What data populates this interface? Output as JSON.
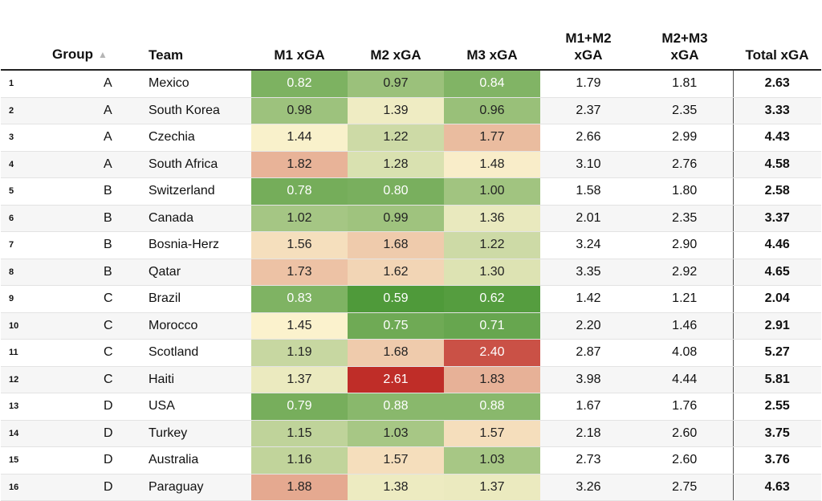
{
  "headers": {
    "group": "Group",
    "team": "Team",
    "m1": "M1 xGA",
    "m2": "M2 xGA",
    "m3": "M3 xGA",
    "m1m2_line1": "M1+M2",
    "m1m2_line2": "xGA",
    "m2m3_line1": "M2+M3",
    "m2m3_line2": "xGA",
    "total": "Total xGA"
  },
  "sort": {
    "column": "Group",
    "direction": "ascending",
    "icon": "triangle-up-icon"
  },
  "color_scale": {
    "low": "#4f9a3a",
    "mid": "#fbf2cd",
    "high": "#bf2d28",
    "domain": [
      0.59,
      1.45,
      2.61
    ]
  },
  "rows": [
    {
      "idx": "1",
      "group": "A",
      "team": "Mexico",
      "m1": "0.82",
      "m2": "0.97",
      "m3": "0.84",
      "m1m2": "1.79",
      "m2m3": "1.81",
      "total": "2.63"
    },
    {
      "idx": "2",
      "group": "A",
      "team": "South Korea",
      "m1": "0.98",
      "m2": "1.39",
      "m3": "0.96",
      "m1m2": "2.37",
      "m2m3": "2.35",
      "total": "3.33"
    },
    {
      "idx": "3",
      "group": "A",
      "team": "Czechia",
      "m1": "1.44",
      "m2": "1.22",
      "m3": "1.77",
      "m1m2": "2.66",
      "m2m3": "2.99",
      "total": "4.43"
    },
    {
      "idx": "4",
      "group": "A",
      "team": "South Africa",
      "m1": "1.82",
      "m2": "1.28",
      "m3": "1.48",
      "m1m2": "3.10",
      "m2m3": "2.76",
      "total": "4.58"
    },
    {
      "idx": "5",
      "group": "B",
      "team": "Switzerland",
      "m1": "0.78",
      "m2": "0.80",
      "m3": "1.00",
      "m1m2": "1.58",
      "m2m3": "1.80",
      "total": "2.58"
    },
    {
      "idx": "6",
      "group": "B",
      "team": "Canada",
      "m1": "1.02",
      "m2": "0.99",
      "m3": "1.36",
      "m1m2": "2.01",
      "m2m3": "2.35",
      "total": "3.37"
    },
    {
      "idx": "7",
      "group": "B",
      "team": "Bosnia-Herz",
      "m1": "1.56",
      "m2": "1.68",
      "m3": "1.22",
      "m1m2": "3.24",
      "m2m3": "2.90",
      "total": "4.46"
    },
    {
      "idx": "8",
      "group": "B",
      "team": "Qatar",
      "m1": "1.73",
      "m2": "1.62",
      "m3": "1.30",
      "m1m2": "3.35",
      "m2m3": "2.92",
      "total": "4.65"
    },
    {
      "idx": "9",
      "group": "C",
      "team": "Brazil",
      "m1": "0.83",
      "m2": "0.59",
      "m3": "0.62",
      "m1m2": "1.42",
      "m2m3": "1.21",
      "total": "2.04"
    },
    {
      "idx": "10",
      "group": "C",
      "team": "Morocco",
      "m1": "1.45",
      "m2": "0.75",
      "m3": "0.71",
      "m1m2": "2.20",
      "m2m3": "1.46",
      "total": "2.91"
    },
    {
      "idx": "11",
      "group": "C",
      "team": "Scotland",
      "m1": "1.19",
      "m2": "1.68",
      "m3": "2.40",
      "m1m2": "2.87",
      "m2m3": "4.08",
      "total": "5.27"
    },
    {
      "idx": "12",
      "group": "C",
      "team": "Haiti",
      "m1": "1.37",
      "m2": "2.61",
      "m3": "1.83",
      "m1m2": "3.98",
      "m2m3": "4.44",
      "total": "5.81"
    },
    {
      "idx": "13",
      "group": "D",
      "team": "USA",
      "m1": "0.79",
      "m2": "0.88",
      "m3": "0.88",
      "m1m2": "1.67",
      "m2m3": "1.76",
      "total": "2.55"
    },
    {
      "idx": "14",
      "group": "D",
      "team": "Turkey",
      "m1": "1.15",
      "m2": "1.03",
      "m3": "1.57",
      "m1m2": "2.18",
      "m2m3": "2.60",
      "total": "3.75"
    },
    {
      "idx": "15",
      "group": "D",
      "team": "Australia",
      "m1": "1.16",
      "m2": "1.57",
      "m3": "1.03",
      "m1m2": "2.73",
      "m2m3": "2.60",
      "total": "3.76"
    },
    {
      "idx": "16",
      "group": "D",
      "team": "Paraguay",
      "m1": "1.88",
      "m2": "1.38",
      "m3": "1.37",
      "m1m2": "3.26",
      "m2m3": "2.75",
      "total": "4.63"
    }
  ]
}
